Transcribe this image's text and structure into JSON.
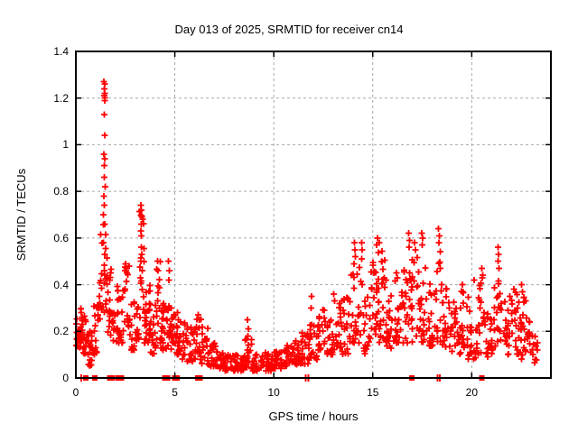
{
  "chart_data": {
    "type": "scatter",
    "title": "Day 013 of 2025, SRMTID for receiver cn14",
    "xlabel": "GPS time / hours",
    "ylabel": "SRMTID / TECUs",
    "xlim": [
      0,
      24
    ],
    "ylim": [
      0,
      1.4
    ],
    "xticks": [
      0,
      5,
      10,
      15,
      20
    ],
    "yticks": [
      0,
      0.2,
      0.4,
      0.6,
      0.8,
      1,
      1.2,
      1.4
    ],
    "grid": {
      "show": true,
      "color": "#a8a8a8",
      "style": "dashed"
    },
    "legend": "none",
    "series_name": "SRMTID",
    "marker": {
      "shape": "plus",
      "color": "#ff0000"
    },
    "event_marker": {
      "shape": "filled-square",
      "color": "#ff0000",
      "y": 0
    },
    "scatter_envelope_bins": [
      [
        0.0,
        0.3,
        0.13,
        0.31,
        24
      ],
      [
        0.3,
        0.6,
        0.1,
        0.27,
        22
      ],
      [
        0.6,
        0.9,
        0.05,
        0.2,
        20
      ],
      [
        0.9,
        1.1,
        0.1,
        0.38,
        14
      ],
      [
        1.1,
        1.35,
        0.22,
        0.62,
        16
      ],
      [
        1.35,
        1.6,
        0.28,
        0.66,
        18
      ],
      [
        1.6,
        1.85,
        0.18,
        0.5,
        16
      ],
      [
        1.85,
        2.15,
        0.15,
        0.4,
        18
      ],
      [
        2.15,
        2.45,
        0.15,
        0.38,
        16
      ],
      [
        2.45,
        2.7,
        0.22,
        0.49,
        16
      ],
      [
        2.7,
        3.0,
        0.12,
        0.33,
        16
      ],
      [
        3.0,
        3.2,
        0.15,
        0.4,
        12
      ],
      [
        3.2,
        3.45,
        0.25,
        0.74,
        16
      ],
      [
        3.45,
        3.75,
        0.15,
        0.4,
        28
      ],
      [
        3.75,
        4.05,
        0.1,
        0.32,
        18
      ],
      [
        4.05,
        4.3,
        0.15,
        0.5,
        14
      ],
      [
        4.3,
        4.6,
        0.12,
        0.33,
        22
      ],
      [
        4.6,
        4.9,
        0.12,
        0.32,
        22
      ],
      [
        4.9,
        5.2,
        0.1,
        0.28,
        20
      ],
      [
        5.2,
        5.6,
        0.08,
        0.24,
        20
      ],
      [
        5.6,
        6.0,
        0.07,
        0.22,
        18
      ],
      [
        6.0,
        6.35,
        0.08,
        0.27,
        18
      ],
      [
        6.35,
        6.7,
        0.06,
        0.22,
        18
      ],
      [
        6.7,
        7.1,
        0.05,
        0.16,
        18
      ],
      [
        7.1,
        7.5,
        0.04,
        0.12,
        20
      ],
      [
        7.5,
        8.0,
        0.03,
        0.1,
        26
      ],
      [
        8.0,
        8.5,
        0.03,
        0.1,
        26
      ],
      [
        8.5,
        8.9,
        0.04,
        0.17,
        22
      ],
      [
        8.9,
        9.4,
        0.03,
        0.1,
        26
      ],
      [
        9.4,
        9.9,
        0.03,
        0.11,
        26
      ],
      [
        9.9,
        10.4,
        0.04,
        0.12,
        26
      ],
      [
        10.4,
        10.9,
        0.05,
        0.14,
        24
      ],
      [
        10.9,
        11.4,
        0.05,
        0.16,
        24
      ],
      [
        11.4,
        11.8,
        0.06,
        0.2,
        20
      ],
      [
        11.8,
        12.2,
        0.08,
        0.24,
        20
      ],
      [
        12.2,
        12.6,
        0.1,
        0.3,
        20
      ],
      [
        12.6,
        13.0,
        0.1,
        0.28,
        20
      ],
      [
        13.0,
        13.4,
        0.12,
        0.32,
        20
      ],
      [
        13.4,
        13.8,
        0.1,
        0.35,
        20
      ],
      [
        13.8,
        14.1,
        0.15,
        0.45,
        14
      ],
      [
        14.1,
        14.5,
        0.15,
        0.5,
        16
      ],
      [
        14.5,
        14.9,
        0.1,
        0.35,
        18
      ],
      [
        14.9,
        15.3,
        0.18,
        0.55,
        26
      ],
      [
        15.3,
        15.7,
        0.15,
        0.55,
        26
      ],
      [
        15.7,
        16.1,
        0.12,
        0.38,
        20
      ],
      [
        16.1,
        16.5,
        0.15,
        0.42,
        20
      ],
      [
        16.5,
        16.9,
        0.15,
        0.5,
        20
      ],
      [
        16.9,
        17.3,
        0.15,
        0.55,
        20
      ],
      [
        17.3,
        17.7,
        0.15,
        0.55,
        20
      ],
      [
        17.7,
        18.1,
        0.12,
        0.42,
        20
      ],
      [
        18.1,
        18.5,
        0.15,
        0.55,
        18
      ],
      [
        18.5,
        18.9,
        0.12,
        0.4,
        20
      ],
      [
        18.9,
        19.4,
        0.1,
        0.33,
        22
      ],
      [
        19.4,
        19.8,
        0.1,
        0.38,
        20
      ],
      [
        19.8,
        20.3,
        0.08,
        0.35,
        22
      ],
      [
        20.3,
        20.7,
        0.1,
        0.43,
        20
      ],
      [
        20.7,
        21.1,
        0.08,
        0.3,
        20
      ],
      [
        21.1,
        21.6,
        0.12,
        0.45,
        20
      ],
      [
        21.6,
        22.0,
        0.1,
        0.35,
        20
      ],
      [
        22.0,
        22.4,
        0.1,
        0.38,
        20
      ],
      [
        22.4,
        22.8,
        0.08,
        0.35,
        20
      ],
      [
        22.8,
        23.1,
        0.06,
        0.25,
        14
      ],
      [
        23.1,
        23.35,
        0.05,
        0.18,
        8
      ]
    ],
    "notable_points": [
      [
        1.42,
        1.27
      ],
      [
        1.45,
        1.26
      ],
      [
        1.44,
        1.24
      ],
      [
        1.47,
        1.22
      ],
      [
        1.43,
        1.21
      ],
      [
        1.46,
        1.2
      ],
      [
        1.45,
        1.19
      ],
      [
        1.44,
        1.13
      ],
      [
        1.45,
        1.04
      ],
      [
        1.42,
        0.96
      ],
      [
        1.47,
        0.94
      ],
      [
        1.43,
        0.91
      ],
      [
        1.44,
        0.86
      ],
      [
        1.48,
        0.82
      ],
      [
        1.42,
        0.78
      ],
      [
        1.43,
        0.74
      ],
      [
        1.4,
        0.7
      ],
      [
        1.46,
        0.66
      ],
      [
        3.28,
        0.74
      ],
      [
        3.3,
        0.72
      ],
      [
        3.32,
        0.69
      ],
      [
        3.29,
        0.63
      ],
      [
        3.31,
        0.61
      ],
      [
        3.3,
        0.56
      ],
      [
        3.33,
        0.53
      ],
      [
        3.28,
        0.5
      ],
      [
        3.35,
        0.46
      ],
      [
        3.27,
        0.43
      ],
      [
        2.52,
        0.49
      ],
      [
        2.55,
        0.47
      ],
      [
        4.12,
        0.5
      ],
      [
        4.15,
        0.46
      ],
      [
        4.68,
        0.5
      ],
      [
        4.72,
        0.46
      ],
      [
        4.7,
        0.42
      ],
      [
        6.18,
        0.27
      ],
      [
        6.22,
        0.25
      ],
      [
        8.68,
        0.25
      ],
      [
        8.72,
        0.21
      ],
      [
        8.7,
        0.18
      ],
      [
        11.92,
        0.35
      ],
      [
        11.88,
        0.3
      ],
      [
        13.02,
        0.36
      ],
      [
        13.07,
        0.33
      ],
      [
        14.08,
        0.58
      ],
      [
        14.1,
        0.55
      ],
      [
        14.12,
        0.52
      ],
      [
        14.06,
        0.49
      ],
      [
        14.43,
        0.58
      ],
      [
        14.46,
        0.55
      ],
      [
        14.44,
        0.51
      ],
      [
        15.25,
        0.6
      ],
      [
        15.32,
        0.58
      ],
      [
        15.2,
        0.57
      ],
      [
        16.2,
        0.45
      ],
      [
        16.24,
        0.43
      ],
      [
        16.82,
        0.62
      ],
      [
        16.86,
        0.59
      ],
      [
        16.84,
        0.56
      ],
      [
        17.12,
        0.58
      ],
      [
        17.16,
        0.55
      ],
      [
        17.48,
        0.62
      ],
      [
        17.52,
        0.6
      ],
      [
        17.5,
        0.57
      ],
      [
        18.33,
        0.64
      ],
      [
        18.36,
        0.61
      ],
      [
        18.34,
        0.58
      ],
      [
        19.52,
        0.4
      ],
      [
        19.56,
        0.37
      ],
      [
        20.12,
        0.42
      ],
      [
        20.52,
        0.47
      ],
      [
        20.56,
        0.44
      ],
      [
        21.32,
        0.56
      ],
      [
        21.36,
        0.53
      ],
      [
        21.34,
        0.5
      ],
      [
        21.38,
        0.47
      ],
      [
        22.12,
        0.38
      ],
      [
        22.52,
        0.4
      ],
      [
        22.56,
        0.37
      ]
    ],
    "event_marker_hours": [
      0.5,
      0.95,
      1.7,
      1.85,
      2.15,
      2.3,
      4.5,
      4.62,
      5.0,
      5.12,
      6.15,
      6.27,
      16.98,
      20.5
    ],
    "event_marker_thin_hours": [
      0.27,
      11.62,
      11.74,
      18.28,
      18.38
    ]
  }
}
